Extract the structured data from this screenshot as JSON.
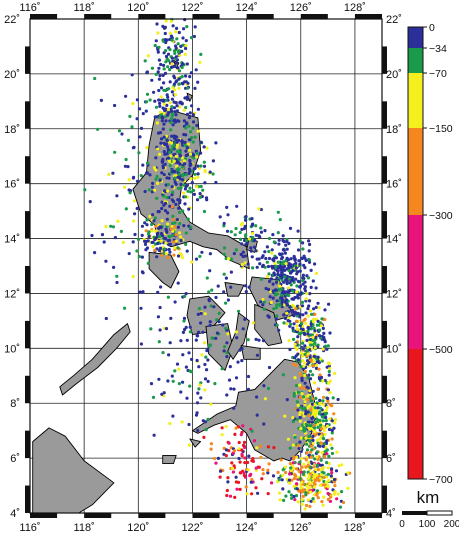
{
  "map": {
    "lon_ticks": [
      "116˚",
      "118˚",
      "120˚",
      "122˚",
      "124˚",
      "126˚",
      "128˚"
    ],
    "lat_ticks": [
      "4˚",
      "6˚",
      "8˚",
      "10˚",
      "12˚",
      "14˚",
      "16˚",
      "18˚",
      "20˚",
      "22˚"
    ],
    "lon_range": [
      116,
      129
    ],
    "lat_range": [
      4,
      22
    ],
    "land_color": "#9a9a9a",
    "frame_color": "#111111"
  },
  "depth_scale": {
    "labels": [
      "0",
      "−34",
      "−70",
      "−150",
      "−300",
      "−500",
      "−700"
    ],
    "values": [
      0,
      -34,
      -70,
      -150,
      -300,
      -500,
      -700
    ],
    "bands": [
      {
        "from": 0,
        "to": -34,
        "color": "#2b2f9a"
      },
      {
        "from": -34,
        "to": -70,
        "color": "#1a9a4a"
      },
      {
        "from": -70,
        "to": -150,
        "color": "#f4ef1e"
      },
      {
        "from": -150,
        "to": -300,
        "color": "#f5871f"
      },
      {
        "from": -300,
        "to": -500,
        "color": "#e8147c"
      },
      {
        "from": -500,
        "to": -700,
        "color": "#e8171f"
      }
    ]
  },
  "scale_bar": {
    "unit": "km",
    "ticks": [
      "0",
      "100",
      "200"
    ]
  }
}
